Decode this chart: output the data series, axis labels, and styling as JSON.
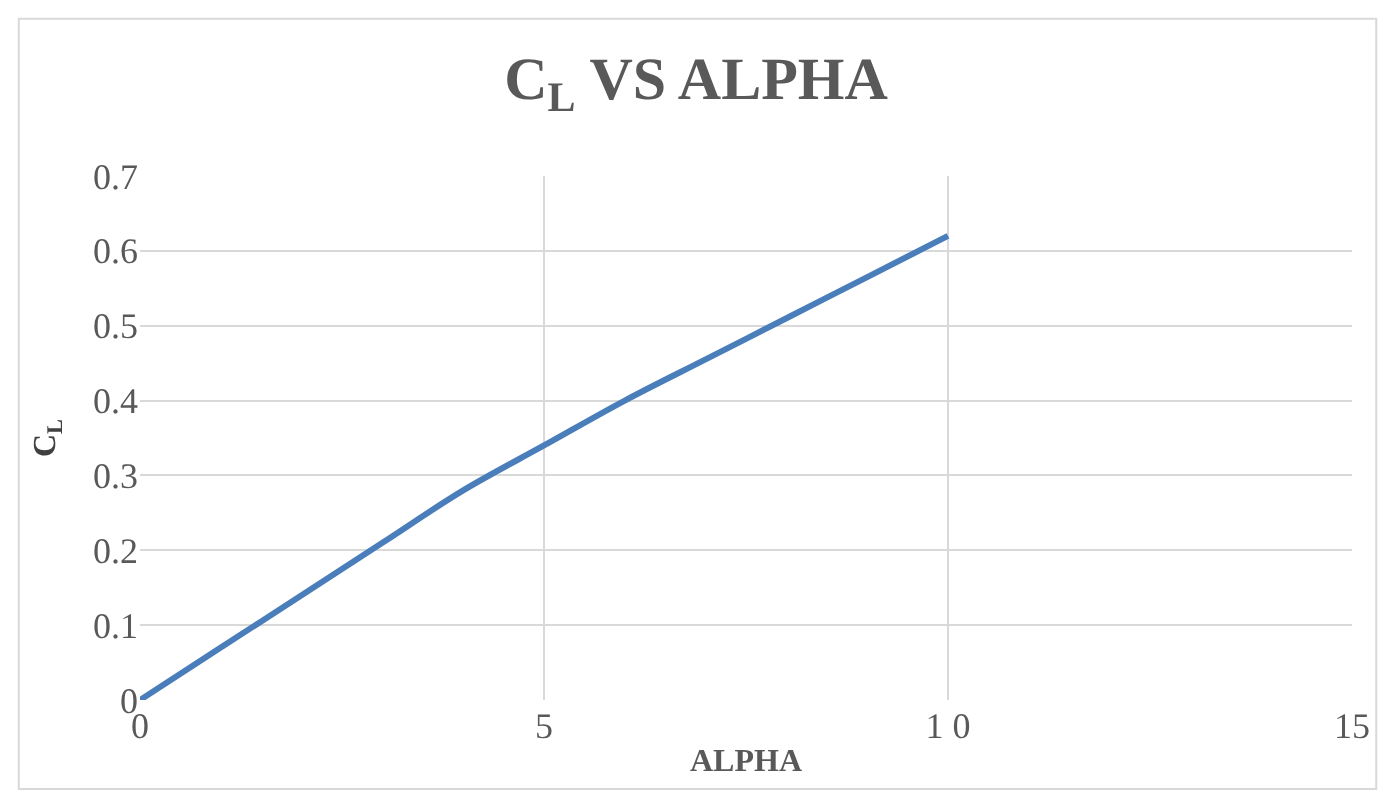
{
  "chart_data": {
    "type": "line",
    "title": "C$_{L}$ VS ALPHA",
    "xlabel": "ALPHA",
    "ylabel": "C$_{L}$",
    "x": [
      0,
      1,
      2,
      3,
      4,
      5,
      6,
      7,
      8,
      9,
      10
    ],
    "series": [
      {
        "color": "#4a7ebb",
        "values": [
          0,
          0.07,
          0.14,
          0.21,
          0.28,
          0.34,
          0.4,
          0.455,
          0.51,
          0.565,
          0.62
        ]
      }
    ],
    "xlim": [
      0,
      15
    ],
    "xticks": [
      0,
      5,
      {
        "value": 10,
        "label": "1 0"
      },
      15
    ],
    "ylim": [
      0,
      0.7
    ],
    "yticks": [
      0,
      0.1,
      0.2,
      0.3,
      0.4,
      0.5,
      0.6,
      0.7
    ],
    "grid": true,
    "marker": "none",
    "line_style": "solid"
  }
}
